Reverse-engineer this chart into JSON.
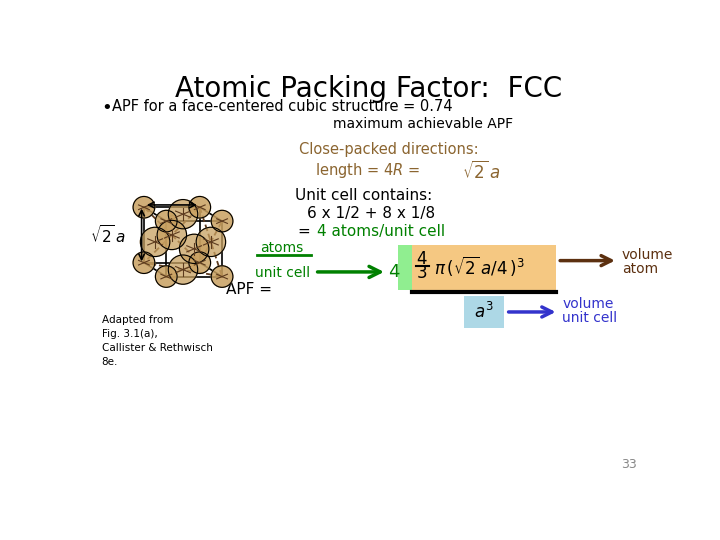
{
  "title": "Atomic Packing Factor:  FCC",
  "bullet": "APF for a face-centered cubic structure = 0.74",
  "max_apf": "maximum achievable APF",
  "close_packed": "Close-packed directions:",
  "length_eq_left": "length = 4",
  "length_eq_right": " = ",
  "unit_cell_contains": "Unit cell contains:",
  "eq1": "6 x 1/2 + 8 x 1/8",
  "eq2_black": "=",
  "eq2_green": "4 atoms/unit cell",
  "adapted": "Adapted from\nFig. 3.1(a),\nCallister & Rethwisch\n8e.",
  "atoms_label": "atoms",
  "unit_cell_label": "unit cell",
  "apf_label": "APF = ",
  "page_num": "33",
  "title_color": "#000000",
  "brown_color": "#8B6530",
  "green_color": "#008000",
  "blue_color": "#3333CC",
  "dark_brown_arrow": "#5C3010",
  "orange_bg": "#F5C882",
  "light_green_bg": "#90EE90",
  "light_blue_bg": "#ADD8E6",
  "frac_line_color": "#000000"
}
